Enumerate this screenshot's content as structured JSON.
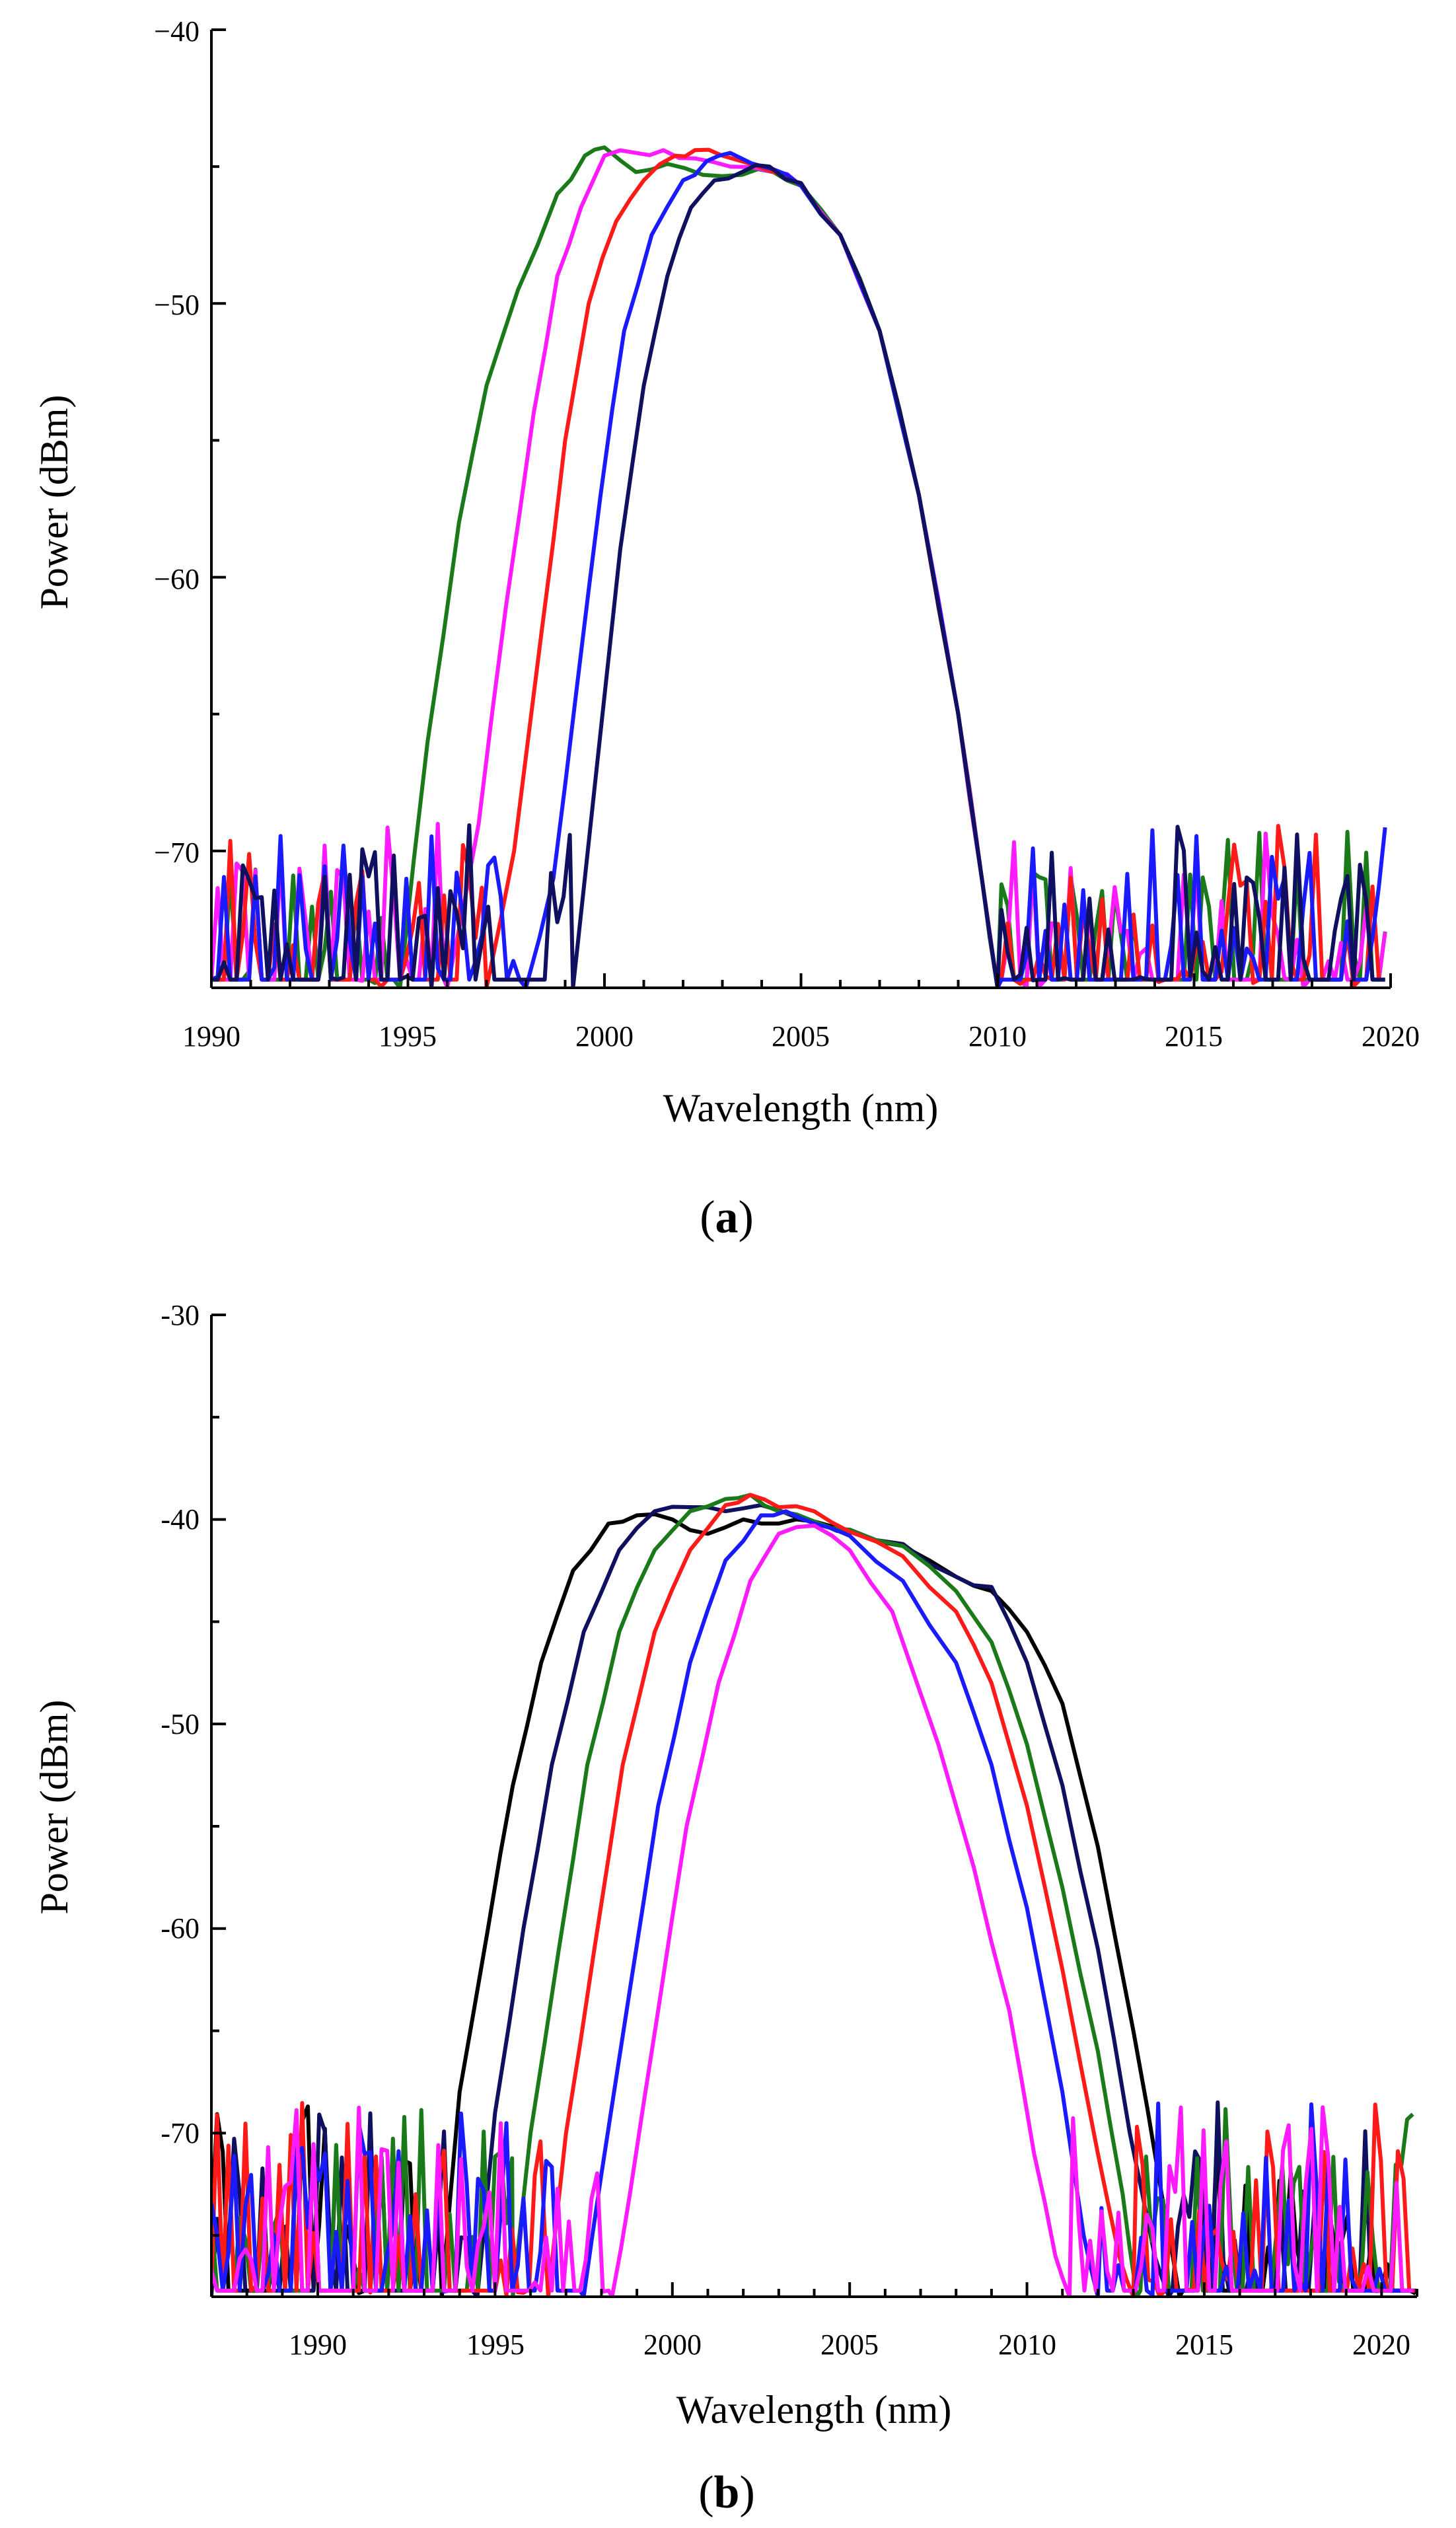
{
  "chart_data": [
    {
      "type": "line",
      "panel": "a",
      "panel_label_open": "(",
      "panel_label_letter": "a",
      "panel_label_close": ")",
      "xlabel": "Wavelength (nm)",
      "ylabel": "Power (dBm)",
      "xlim": [
        1990,
        2020
      ],
      "ylim": [
        -75,
        -40
      ],
      "xticks": [
        1990,
        1995,
        2000,
        2005,
        2010,
        2015,
        2020
      ],
      "xtick_labels": [
        "1990",
        "1995",
        "2000",
        "2005",
        "2010",
        "2015",
        "2020"
      ],
      "yticks": [
        -40,
        -50,
        -60,
        -70
      ],
      "ytick_labels": [
        "−40",
        "−50",
        "−60",
        "−70"
      ],
      "grid": false,
      "noise_floor_range": [
        -75,
        -70
      ],
      "series": [
        {
          "name": "trace-green",
          "color": "#1a7a1a",
          "x": [
            1994.8,
            1995.5,
            1996.3,
            1997.0,
            1997.8,
            1998.8,
            1999.5,
            2000.0,
            2000.8,
            2001.6,
            2002.5,
            2003.5,
            2004.3,
            2005.0,
            2006.0,
            2007.0,
            2008.0,
            2009.0,
            2009.6,
            2010.0
          ],
          "y": [
            -75,
            -66,
            -58,
            -53,
            -49.5,
            -46,
            -44.6,
            -44.3,
            -45.2,
            -44.9,
            -45.3,
            -45.3,
            -45.2,
            -45.7,
            -47.5,
            -51,
            -57,
            -65,
            -71,
            -75
          ]
        },
        {
          "name": "trace-magenta",
          "color": "#ff1aff",
          "x": [
            1996.0,
            1996.8,
            1997.5,
            1998.2,
            1998.8,
            1999.4,
            2000.0,
            2000.8,
            2001.5,
            2002.3,
            2003.2,
            2004.3,
            2005.0,
            2006.0,
            2007.0,
            2008.0,
            2009.0,
            2009.6,
            2010.0
          ],
          "y": [
            -75,
            -69,
            -61,
            -54,
            -49,
            -46.5,
            -44.6,
            -44.5,
            -44.4,
            -44.7,
            -45.0,
            -45.2,
            -45.7,
            -47.5,
            -51,
            -57,
            -65,
            -71,
            -75
          ]
        },
        {
          "name": "trace-red",
          "color": "#ff1a1a",
          "x": [
            1997.0,
            1997.7,
            1998.4,
            1999.0,
            1999.6,
            2000.3,
            2001.0,
            2001.8,
            2002.3,
            2003.0,
            2004.3,
            2005.0,
            2006.0,
            2007.0,
            2008.0,
            2009.0,
            2009.6,
            2010.0
          ],
          "y": [
            -75,
            -70,
            -62,
            -55,
            -50,
            -47,
            -45.5,
            -44.6,
            -44.4,
            -44.6,
            -45.2,
            -45.7,
            -47.5,
            -51,
            -57,
            -65,
            -71,
            -75
          ]
        },
        {
          "name": "trace-blue",
          "color": "#1a1aff",
          "x": [
            1998.0,
            1998.7,
            1999.3,
            1999.9,
            2000.5,
            2001.2,
            2002.0,
            2002.6,
            2003.2,
            2004.3,
            2005.0,
            2006.0,
            2007.0,
            2008.0,
            2009.0,
            2009.6,
            2010.0
          ],
          "y": [
            -75,
            -71,
            -64,
            -57,
            -51,
            -47.5,
            -45.5,
            -44.8,
            -44.5,
            -45.1,
            -45.7,
            -47.5,
            -51,
            -57,
            -65,
            -71,
            -75
          ]
        },
        {
          "name": "trace-navy",
          "color": "#101060",
          "x": [
            1999.2,
            1999.8,
            2000.4,
            2001.0,
            2001.6,
            2002.2,
            2002.8,
            2003.5,
            2004.2,
            2005.0,
            2006.0,
            2007.0,
            2008.0,
            2009.0,
            2009.6,
            2010.0
          ],
          "y": [
            -75,
            -67,
            -59,
            -53,
            -49,
            -46.5,
            -45.5,
            -45.2,
            -45.0,
            -45.6,
            -47.5,
            -51,
            -57,
            -65,
            -71,
            -75
          ]
        }
      ]
    },
    {
      "type": "line",
      "panel": "b",
      "panel_label_open": "(",
      "panel_label_letter": "b",
      "panel_label_close": ")",
      "xlabel": "Wavelength (nm)",
      "ylabel": "Power (dBm)",
      "xlim": [
        1987,
        2021
      ],
      "ylim": [
        -78,
        -30
      ],
      "xticks": [
        1990,
        1995,
        2000,
        2005,
        2010,
        2015,
        2020
      ],
      "xtick_labels": [
        "1990",
        "1995",
        "2000",
        "2005",
        "2010",
        "2015",
        "2020"
      ],
      "yticks": [
        -30,
        -40,
        -50,
        -60,
        -70
      ],
      "ytick_labels": [
        "-30",
        "-40",
        "-50",
        "-60",
        "-70"
      ],
      "grid": false,
      "noise_floor_range": [
        -78,
        -70
      ],
      "series": [
        {
          "name": "trace-black",
          "color": "#000000",
          "x": [
            1993.5,
            1994.0,
            1994.8,
            1995.5,
            1996.3,
            1997.2,
            1998.2,
            1999.0,
            2000.0,
            2001.0,
            2002.0,
            2003.0,
            2004.0,
            2005.0,
            2006.5,
            2008.0,
            2009.0,
            2010.0,
            2011.0,
            2012.0,
            2013.0,
            2013.8,
            2014.3
          ],
          "y": [
            -78,
            -68,
            -60,
            -53,
            -47,
            -42.5,
            -40.2,
            -39.8,
            -40.0,
            -40.7,
            -40.0,
            -40.2,
            -40.1,
            -40.6,
            -41.3,
            -42.8,
            -43.5,
            -45.5,
            -49,
            -56,
            -65,
            -73,
            -78
          ]
        },
        {
          "name": "trace-navy",
          "color": "#101060",
          "x": [
            1994.5,
            1995.0,
            1995.8,
            1996.6,
            1997.5,
            1998.5,
            1999.5,
            2000.5,
            2001.5,
            2002.5,
            2003.5,
            2004.3,
            2005.0,
            2006.5,
            2008.0,
            2009.0,
            2010.0,
            2011.0,
            2012.0,
            2012.9,
            2013.6,
            2014.0
          ],
          "y": [
            -78,
            -69,
            -60,
            -52,
            -45.5,
            -41.5,
            -39.6,
            -39.4,
            -39.6,
            -39.3,
            -39.9,
            -40.3,
            -40.5,
            -41.2,
            -42.8,
            -43.3,
            -47,
            -53,
            -61,
            -70,
            -76,
            -78
          ]
        },
        {
          "name": "trace-green",
          "color": "#1a7a1a",
          "x": [
            1995.5,
            1996.0,
            1996.8,
            1997.6,
            1998.5,
            1999.5,
            2000.5,
            2001.5,
            2002.2,
            2003.0,
            2004.0,
            2005.0,
            2006.5,
            2008.0,
            2009.0,
            2010.0,
            2011.0,
            2012.0,
            2012.7,
            2013.1
          ],
          "y": [
            -78,
            -70,
            -61,
            -52,
            -45.5,
            -41.5,
            -39.6,
            -39.0,
            -38.8,
            -39.6,
            -40.1,
            -40.5,
            -41.3,
            -43.5,
            -46,
            -51,
            -58,
            -66,
            -73,
            -78
          ]
        },
        {
          "name": "trace-red",
          "color": "#ff1a1a",
          "x": [
            1996.5,
            1997.0,
            1997.8,
            1998.6,
            1999.5,
            2000.5,
            2001.5,
            2002.2,
            2003.0,
            2004.0,
            2005.0,
            2006.5,
            2008.0,
            2009.0,
            2010.0,
            2011.0,
            2012.0,
            2012.6,
            2013.0
          ],
          "y": [
            -78,
            -70,
            -61,
            -52,
            -45.5,
            -41.5,
            -39.3,
            -38.8,
            -39.4,
            -39.6,
            -40.6,
            -41.8,
            -44.5,
            -48,
            -54,
            -62,
            -71,
            -76,
            -78
          ]
        },
        {
          "name": "trace-blue",
          "color": "#1a1aff",
          "x": [
            1997.5,
            1998.0,
            1998.8,
            1999.6,
            2000.5,
            2001.5,
            2002.5,
            2003.2,
            2004.0,
            2005.0,
            2006.5,
            2008.0,
            2009.0,
            2010.0,
            2011.0,
            2011.6,
            2012.0
          ],
          "y": [
            -78,
            -72,
            -63,
            -54,
            -47,
            -42,
            -39.8,
            -39.6,
            -40.2,
            -40.8,
            -43,
            -47,
            -52,
            -59,
            -68,
            -75,
            -78
          ]
        },
        {
          "name": "trace-magenta",
          "color": "#ff1aff",
          "x": [
            1998.3,
            1998.8,
            1999.6,
            2000.4,
            2001.3,
            2002.2,
            2003.0,
            2004.0,
            2005.0,
            2006.2,
            2007.5,
            2008.5,
            2009.5,
            2010.2,
            2010.8,
            2011.2
          ],
          "y": [
            -78,
            -73,
            -64,
            -55,
            -48,
            -43,
            -40.7,
            -40.3,
            -41.5,
            -44.5,
            -51,
            -57,
            -64,
            -71,
            -76,
            -78
          ]
        }
      ]
    }
  ]
}
